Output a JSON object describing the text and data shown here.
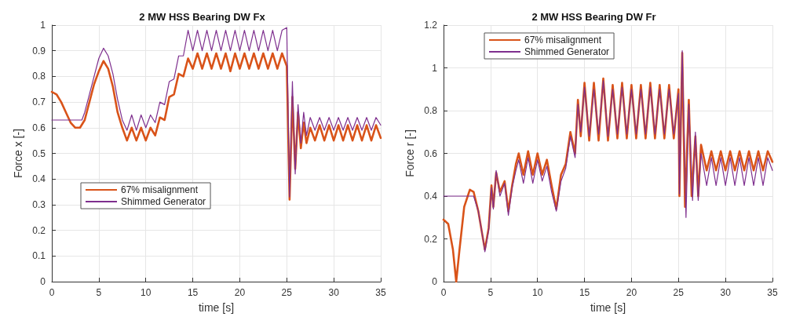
{
  "chart_data": [
    {
      "type": "line",
      "title": "2 MW HSS Bearing DW Fx",
      "xlabel": "time [s]",
      "ylabel": "Force x [-]",
      "xlim": [
        0,
        35
      ],
      "xticks": [
        0,
        5,
        10,
        15,
        20,
        25,
        30,
        35
      ],
      "ylim": [
        0,
        1
      ],
      "yticks": [
        0,
        0.1,
        0.2,
        0.3,
        0.4,
        0.5,
        0.6,
        0.7,
        0.8,
        0.9,
        1
      ],
      "grid": true,
      "legend": "left",
      "line_style": "solid",
      "marker": "none",
      "series": [
        {
          "name": "67% misalignment",
          "color": "#d95319",
          "x": [
            0,
            0.5,
            1,
            1.5,
            2,
            2.5,
            3,
            3.5,
            4,
            4.5,
            5,
            5.5,
            6,
            6.5,
            7,
            7.5,
            8,
            8.5,
            9,
            9.5,
            10,
            10.5,
            11,
            11.5,
            12,
            12.5,
            13,
            13.5,
            14,
            14.5,
            15,
            15.5,
            16,
            16.5,
            17,
            17.5,
            18,
            18.5,
            19,
            19.5,
            20,
            20.5,
            21,
            21.5,
            22,
            22.5,
            23,
            23.5,
            24,
            24.5,
            25,
            25.3,
            25.6,
            25.9,
            26.2,
            26.5,
            26.8,
            27.1,
            27.5,
            28,
            28.5,
            29,
            29.5,
            30,
            30.5,
            31,
            31.5,
            32,
            32.5,
            33,
            33.5,
            34,
            34.5,
            35
          ],
          "values": [
            0.74,
            0.73,
            0.7,
            0.66,
            0.62,
            0.6,
            0.6,
            0.63,
            0.7,
            0.77,
            0.82,
            0.86,
            0.83,
            0.76,
            0.66,
            0.6,
            0.55,
            0.6,
            0.55,
            0.6,
            0.55,
            0.6,
            0.57,
            0.64,
            0.63,
            0.72,
            0.73,
            0.81,
            0.8,
            0.87,
            0.83,
            0.89,
            0.83,
            0.89,
            0.83,
            0.89,
            0.83,
            0.89,
            0.82,
            0.89,
            0.83,
            0.89,
            0.83,
            0.89,
            0.83,
            0.89,
            0.83,
            0.89,
            0.83,
            0.89,
            0.84,
            0.32,
            0.72,
            0.44,
            0.66,
            0.52,
            0.62,
            0.54,
            0.6,
            0.55,
            0.61,
            0.55,
            0.61,
            0.55,
            0.61,
            0.55,
            0.61,
            0.55,
            0.61,
            0.55,
            0.61,
            0.55,
            0.61,
            0.56
          ]
        },
        {
          "name": "Shimmed Generator",
          "color": "#7e2f8e",
          "x": [
            0,
            3.2,
            3.5,
            4,
            4.5,
            5,
            5.5,
            6,
            6.5,
            7,
            7.5,
            8,
            8.5,
            9,
            9.5,
            10,
            10.5,
            11,
            11.5,
            12,
            12.5,
            13,
            13.5,
            14,
            14.5,
            15,
            15.5,
            16,
            16.5,
            17,
            17.5,
            18,
            18.5,
            19,
            19.5,
            20,
            20.5,
            21,
            21.5,
            22,
            22.5,
            23,
            23.5,
            24,
            24.5,
            25,
            25.3,
            25.6,
            25.9,
            26.2,
            26.5,
            26.8,
            27.1,
            27.5,
            28,
            28.5,
            29,
            29.5,
            30,
            30.5,
            31,
            31.5,
            32,
            32.5,
            33,
            33.5,
            34,
            34.5,
            35
          ],
          "values": [
            0.63,
            0.63,
            0.66,
            0.73,
            0.8,
            0.87,
            0.91,
            0.88,
            0.81,
            0.71,
            0.63,
            0.59,
            0.65,
            0.59,
            0.65,
            0.6,
            0.65,
            0.62,
            0.7,
            0.69,
            0.78,
            0.79,
            0.88,
            0.88,
            0.98,
            0.9,
            0.98,
            0.9,
            0.98,
            0.9,
            0.98,
            0.9,
            0.98,
            0.9,
            0.98,
            0.9,
            0.98,
            0.9,
            0.98,
            0.9,
            0.98,
            0.9,
            0.98,
            0.9,
            0.98,
            0.99,
            0.33,
            0.78,
            0.42,
            0.69,
            0.54,
            0.66,
            0.57,
            0.64,
            0.59,
            0.64,
            0.59,
            0.64,
            0.59,
            0.64,
            0.59,
            0.64,
            0.59,
            0.64,
            0.59,
            0.64,
            0.59,
            0.64,
            0.61
          ]
        }
      ]
    },
    {
      "type": "line",
      "title": "2 MW HSS Bearing DW Fr",
      "xlabel": "time [s]",
      "ylabel": "Force r [-]",
      "xlim": [
        0,
        35
      ],
      "xticks": [
        0,
        5,
        10,
        15,
        20,
        25,
        30,
        35
      ],
      "ylim": [
        0,
        1.2
      ],
      "yticks": [
        0,
        0.2,
        0.4,
        0.6,
        0.8,
        1,
        1.2
      ],
      "grid": true,
      "legend": "top left",
      "line_style": "solid",
      "marker": "none",
      "series": [
        {
          "name": "67% misalignment",
          "color": "#d95319",
          "x": [
            0,
            0.5,
            1,
            1.35,
            1.7,
            2.2,
            2.8,
            3.2,
            3.7,
            4.2,
            4.4,
            4.8,
            5.1,
            5.3,
            5.6,
            6,
            6.5,
            6.9,
            7.3,
            7.7,
            8,
            8.5,
            9,
            9.5,
            10,
            10.5,
            11,
            11.5,
            12,
            12.5,
            13,
            13.5,
            14,
            14.3,
            14.6,
            15,
            15.5,
            16,
            16.5,
            17,
            17.5,
            18,
            18.5,
            19,
            19.5,
            20,
            20.5,
            21,
            21.5,
            22,
            22.5,
            23,
            23.5,
            24,
            24.5,
            25,
            25.1,
            25.4,
            25.7,
            26.1,
            26.4,
            26.8,
            27.1,
            27.4,
            28,
            28.5,
            29,
            29.5,
            30,
            30.5,
            31,
            31.5,
            32,
            32.5,
            33,
            33.5,
            34,
            34.5,
            35
          ],
          "values": [
            0.29,
            0.27,
            0.15,
            0,
            0.15,
            0.35,
            0.43,
            0.42,
            0.33,
            0.2,
            0.15,
            0.25,
            0.45,
            0.35,
            0.51,
            0.42,
            0.47,
            0.33,
            0.45,
            0.55,
            0.6,
            0.5,
            0.61,
            0.5,
            0.6,
            0.5,
            0.57,
            0.45,
            0.34,
            0.5,
            0.55,
            0.7,
            0.6,
            0.85,
            0.68,
            0.93,
            0.66,
            0.93,
            0.66,
            0.95,
            0.66,
            0.92,
            0.67,
            0.93,
            0.67,
            0.92,
            0.67,
            0.92,
            0.67,
            0.93,
            0.67,
            0.92,
            0.67,
            0.92,
            0.67,
            0.9,
            0.4,
            1.07,
            0.35,
            0.85,
            0.4,
            0.68,
            0.4,
            0.64,
            0.52,
            0.61,
            0.52,
            0.61,
            0.52,
            0.61,
            0.52,
            0.61,
            0.52,
            0.61,
            0.52,
            0.61,
            0.52,
            0.61,
            0.56
          ]
        },
        {
          "name": "Shimmed Generator",
          "color": "#7e2f8e",
          "x": [
            0,
            3.2,
            3.7,
            4.2,
            4.4,
            4.8,
            5.1,
            5.3,
            5.6,
            6,
            6.5,
            6.9,
            7.3,
            7.7,
            8,
            8.5,
            9,
            9.5,
            10,
            10.5,
            11,
            11.5,
            12,
            12.5,
            13,
            13.5,
            14,
            14.3,
            14.6,
            15,
            15.5,
            16,
            16.5,
            17,
            17.5,
            18,
            18.5,
            19,
            19.5,
            20,
            20.5,
            21,
            21.5,
            22,
            22.5,
            23,
            23.5,
            24,
            24.5,
            25,
            25.1,
            25.4,
            25.8,
            26.1,
            26.5,
            26.8,
            27.1,
            27.4,
            28,
            28.5,
            29,
            29.5,
            30,
            30.5,
            31,
            31.5,
            32,
            32.5,
            33,
            33.5,
            34,
            34.5,
            35
          ],
          "values": [
            0.4,
            0.4,
            0.33,
            0.2,
            0.14,
            0.24,
            0.44,
            0.34,
            0.52,
            0.4,
            0.46,
            0.31,
            0.44,
            0.52,
            0.57,
            0.46,
            0.58,
            0.46,
            0.57,
            0.47,
            0.54,
            0.42,
            0.33,
            0.47,
            0.53,
            0.68,
            0.58,
            0.83,
            0.7,
            0.91,
            0.68,
            0.9,
            0.69,
            0.94,
            0.68,
            0.9,
            0.69,
            0.91,
            0.69,
            0.9,
            0.69,
            0.9,
            0.69,
            0.91,
            0.69,
            0.9,
            0.69,
            0.9,
            0.69,
            0.88,
            0.41,
            1.08,
            0.3,
            0.83,
            0.38,
            0.7,
            0.38,
            0.6,
            0.45,
            0.58,
            0.45,
            0.58,
            0.45,
            0.58,
            0.45,
            0.58,
            0.45,
            0.58,
            0.45,
            0.58,
            0.45,
            0.58,
            0.52
          ]
        }
      ]
    }
  ]
}
